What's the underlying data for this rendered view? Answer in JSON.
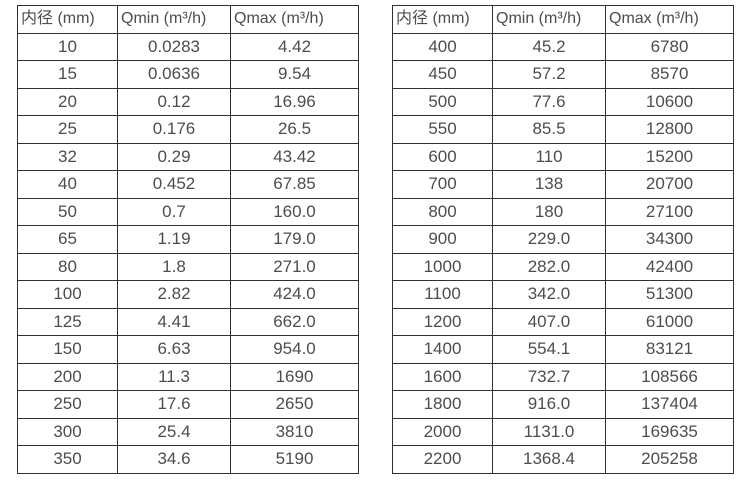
{
  "page": {
    "background_color": "#ffffff",
    "border_color": "#303030",
    "text_color": "#4d4d4d"
  },
  "tables": [
    {
      "name": "flow-table-small-diameters",
      "headers": [
        "内径 (mm)",
        "Qmin (m³/h)",
        "Qmax (m³/h)"
      ],
      "rows": [
        [
          "10",
          "0.0283",
          "4.42"
        ],
        [
          "15",
          "0.0636",
          "9.54"
        ],
        [
          "20",
          "0.12",
          "16.96"
        ],
        [
          "25",
          "0.176",
          "26.5"
        ],
        [
          "32",
          "0.29",
          "43.42"
        ],
        [
          "40",
          "0.452",
          "67.85"
        ],
        [
          "50",
          "0.7",
          "160.0"
        ],
        [
          "65",
          "1.19",
          "179.0"
        ],
        [
          "80",
          "1.8",
          "271.0"
        ],
        [
          "100",
          "2.82",
          "424.0"
        ],
        [
          "125",
          "4.41",
          "662.0"
        ],
        [
          "150",
          "6.63",
          "954.0"
        ],
        [
          "200",
          "11.3",
          "1690"
        ],
        [
          "250",
          "17.6",
          "2650"
        ],
        [
          "300",
          "25.4",
          "3810"
        ],
        [
          "350",
          "34.6",
          "5190"
        ]
      ]
    },
    {
      "name": "flow-table-large-diameters",
      "headers": [
        "内径 (mm)",
        "Qmin (m³/h)",
        "Qmax (m³/h)"
      ],
      "rows": [
        [
          "400",
          "45.2",
          "6780"
        ],
        [
          "450",
          "57.2",
          "8570"
        ],
        [
          "500",
          "77.6",
          "10600"
        ],
        [
          "550",
          "85.5",
          "12800"
        ],
        [
          "600",
          "110",
          "15200"
        ],
        [
          "700",
          "138",
          "20700"
        ],
        [
          "800",
          "180",
          "27100"
        ],
        [
          "900",
          "229.0",
          "34300"
        ],
        [
          "1000",
          "282.0",
          "42400"
        ],
        [
          "1100",
          "342.0",
          "51300"
        ],
        [
          "1200",
          "407.0",
          "61000"
        ],
        [
          "1400",
          "554.1",
          "83121"
        ],
        [
          "1600",
          "732.7",
          "108566"
        ],
        [
          "1800",
          "916.0",
          "137404"
        ],
        [
          "2000",
          "1131.0",
          "169635"
        ],
        [
          "2200",
          "1368.4",
          "205258"
        ]
      ]
    }
  ]
}
